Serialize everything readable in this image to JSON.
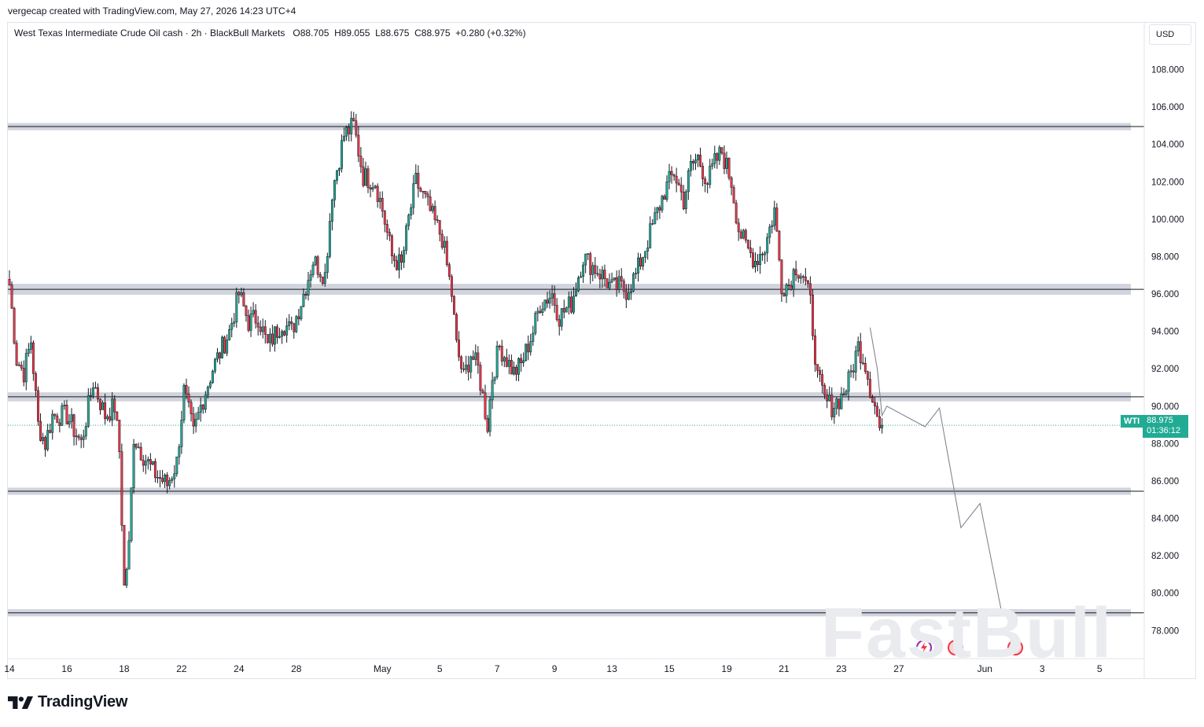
{
  "header": {
    "text": "vergecap created with TradingView.com, May 27, 2026 14:23 UTC+4"
  },
  "legend": {
    "text": "West Texas Intermediate Crude Oil cash · 2h · BlackBull Markets   O88.705  H89.055  L88.675  C88.975  +0.280 (+0.32%)"
  },
  "currency": "USD",
  "last_price": {
    "symbol": "WTI",
    "price": "88.975",
    "countdown": "01:36:12",
    "color": "#22ab94"
  },
  "brand": {
    "name": "TradingView"
  },
  "watermark": "FastBull",
  "colors": {
    "up": "#22ab94",
    "down": "#f23645",
    "candle_body": "#131722",
    "zone": "#d1d4dc",
    "projection": "#787b86"
  },
  "chart_data": {
    "type": "candlestick",
    "ylim": [
      76.5,
      110.5
    ],
    "y_ticks": [
      78,
      80,
      82,
      84,
      86,
      88,
      90,
      92,
      94,
      96,
      98,
      100,
      102,
      104,
      106,
      108
    ],
    "y_tick_labels": [
      "78.000",
      "80.000",
      "82.000",
      "84.000",
      "86.000",
      "88.000",
      "90.000",
      "92.000",
      "94.000",
      "96.000",
      "98.000",
      "100.000",
      "102.000",
      "104.000",
      "106.000",
      "108.000"
    ],
    "x_ticks": [
      {
        "label": "14",
        "i": 0
      },
      {
        "label": "16",
        "i": 24
      },
      {
        "label": "18",
        "i": 48
      },
      {
        "label": "22",
        "i": 72
      },
      {
        "label": "24",
        "i": 96
      },
      {
        "label": "28",
        "i": 120
      },
      {
        "label": "May",
        "i": 156
      },
      {
        "label": "5",
        "i": 180
      },
      {
        "label": "7",
        "i": 204
      },
      {
        "label": "9",
        "i": 228
      },
      {
        "label": "13",
        "i": 252
      },
      {
        "label": "15",
        "i": 276
      },
      {
        "label": "19",
        "i": 300
      },
      {
        "label": "21",
        "i": 324
      },
      {
        "label": "23",
        "i": 348
      },
      {
        "label": "27",
        "i": 372
      },
      {
        "label": "Jun",
        "i": 408
      },
      {
        "label": "3",
        "i": 432
      },
      {
        "label": "5",
        "i": 456
      }
    ],
    "zones": [
      {
        "low": 104.8,
        "high": 105.1
      },
      {
        "low": 96.0,
        "high": 96.5
      },
      {
        "low": 90.3,
        "high": 90.7
      },
      {
        "low": 85.3,
        "high": 85.6
      },
      {
        "low": 78.8,
        "high": 79.1
      }
    ],
    "projection": [
      {
        "i": 360,
        "y": 94.2
      },
      {
        "i": 363,
        "y": 92.0
      },
      {
        "i": 365,
        "y": 89.5
      },
      {
        "i": 367,
        "y": 90.0
      },
      {
        "i": 383,
        "y": 88.9
      },
      {
        "i": 389,
        "y": 89.9
      },
      {
        "i": 398,
        "y": 83.5
      },
      {
        "i": 406,
        "y": 84.8
      },
      {
        "i": 415,
        "y": 79.0
      }
    ],
    "anchors": [
      [
        0,
        96.5
      ],
      [
        3,
        92.5
      ],
      [
        6,
        91.8
      ],
      [
        9,
        93.5
      ],
      [
        12,
        89.0
      ],
      [
        15,
        88.0
      ],
      [
        18,
        89.5
      ],
      [
        24,
        89.5
      ],
      [
        30,
        88.0
      ],
      [
        35,
        91.3
      ],
      [
        40,
        89.5
      ],
      [
        44,
        90.0
      ],
      [
        46,
        87.6
      ],
      [
        48,
        80.3
      ],
      [
        50,
        82.5
      ],
      [
        52,
        88.4
      ],
      [
        55,
        87.6
      ],
      [
        60,
        86.5
      ],
      [
        66,
        85.8
      ],
      [
        70,
        87.0
      ],
      [
        73,
        90.8
      ],
      [
        77,
        88.5
      ],
      [
        80,
        90.0
      ],
      [
        85,
        92.0
      ],
      [
        92,
        94.0
      ],
      [
        96,
        96.0
      ],
      [
        100,
        94.5
      ],
      [
        104,
        94.8
      ],
      [
        108,
        93.2
      ],
      [
        114,
        94.5
      ],
      [
        118,
        94.0
      ],
      [
        123,
        96.0
      ],
      [
        127,
        97.8
      ],
      [
        132,
        97.0
      ],
      [
        135,
        101.5
      ],
      [
        140,
        104.5
      ],
      [
        144,
        105.0
      ],
      [
        148,
        102.3
      ],
      [
        153,
        102.0
      ],
      [
        156,
        100.5
      ],
      [
        160,
        98.0
      ],
      [
        164,
        97.5
      ],
      [
        167,
        100.0
      ],
      [
        170,
        102.0
      ],
      [
        174,
        101.0
      ],
      [
        178,
        99.8
      ],
      [
        181,
        99.0
      ],
      [
        185,
        96.0
      ],
      [
        187,
        93.2
      ],
      [
        190,
        91.5
      ],
      [
        193,
        92.8
      ],
      [
        196,
        92.0
      ],
      [
        200,
        89.0
      ],
      [
        202,
        91.6
      ],
      [
        205,
        93.2
      ],
      [
        208,
        92.5
      ],
      [
        211,
        91.8
      ],
      [
        214,
        92.2
      ],
      [
        219,
        94.0
      ],
      [
        222,
        95.5
      ],
      [
        227,
        96.0
      ],
      [
        230,
        94.8
      ],
      [
        235,
        95.5
      ],
      [
        240,
        98.0
      ],
      [
        243,
        97.6
      ],
      [
        248,
        97.0
      ],
      [
        252,
        96.3
      ],
      [
        255,
        96.4
      ],
      [
        258,
        96.2
      ],
      [
        262,
        97.0
      ],
      [
        266,
        98.5
      ],
      [
        270,
        100.0
      ],
      [
        274,
        101.5
      ],
      [
        278,
        102.5
      ],
      [
        282,
        101.0
      ],
      [
        285,
        102.8
      ],
      [
        288,
        103.3
      ],
      [
        292,
        102.0
      ],
      [
        295,
        103.0
      ],
      [
        298,
        103.6
      ],
      [
        302,
        102.0
      ],
      [
        305,
        99.5
      ],
      [
        308,
        98.5
      ],
      [
        312,
        97.8
      ],
      [
        316,
        98.5
      ],
      [
        320,
        100.5
      ],
      [
        323,
        96.5
      ],
      [
        326,
        96.5
      ],
      [
        329,
        97.5
      ],
      [
        332,
        97.0
      ],
      [
        335,
        95.5
      ],
      [
        338,
        91.5
      ],
      [
        341,
        90.3
      ],
      [
        344,
        90.0
      ],
      [
        348,
        90.5
      ],
      [
        351,
        91.3
      ],
      [
        355,
        93.2
      ],
      [
        358,
        92.3
      ],
      [
        360,
        91.0
      ],
      [
        362,
        90.0
      ],
      [
        364,
        88.8
      ],
      [
        365,
        88.975
      ]
    ]
  }
}
